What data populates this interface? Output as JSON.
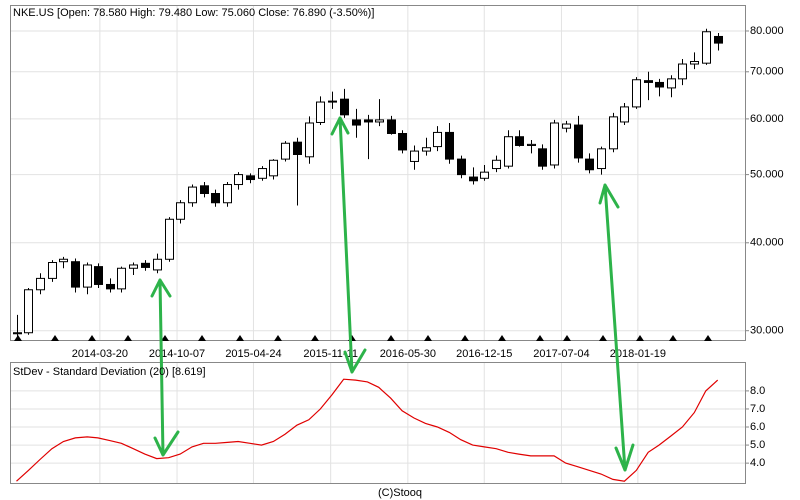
{
  "chart_data": [
    {
      "type": "candlestick",
      "title": "NKE.US [Open: 78.580 High: 79.480 Low: 75.060 Close: 76.890 (-3.50%)]",
      "log_scale": true,
      "grid": true,
      "xlim": [
        "2013-07-29",
        "2018-10-25"
      ],
      "xticks": [
        "2014-03-20",
        "2014-10-07",
        "2015-04-24",
        "2015-11-11",
        "2016-05-30",
        "2016-12-15",
        "2017-07-04",
        "2018-01-19"
      ],
      "ylim": [
        29.1,
        87.1
      ],
      "yticks": [
        {
          "value": 30,
          "label": "30.000"
        },
        {
          "value": 40,
          "label": "40.000"
        },
        {
          "value": 50,
          "label": "50.000"
        },
        {
          "value": 60,
          "label": "60.000"
        },
        {
          "value": 70,
          "label": "70.000"
        },
        {
          "value": 80,
          "label": "80.000"
        }
      ],
      "up_color": "#ffffff",
      "down_color": "#000000",
      "x": [
        "2013-08",
        "2013-09",
        "2013-10",
        "2013-11",
        "2013-12",
        "2014-01",
        "2014-02",
        "2014-03",
        "2014-04",
        "2014-05",
        "2014-06",
        "2014-07",
        "2014-08",
        "2014-09",
        "2014-10",
        "2014-11",
        "2014-12",
        "2015-01",
        "2015-02",
        "2015-03",
        "2015-04",
        "2015-05",
        "2015-06",
        "2015-07",
        "2015-08",
        "2015-09",
        "2015-10",
        "2015-11",
        "2015-12",
        "2016-01",
        "2016-02",
        "2016-03",
        "2016-04",
        "2016-05",
        "2016-06",
        "2016-07",
        "2016-08",
        "2016-09",
        "2016-10",
        "2016-11",
        "2016-12",
        "2017-01",
        "2017-02",
        "2017-03",
        "2017-04",
        "2017-05",
        "2017-06",
        "2017-07",
        "2017-08",
        "2017-09",
        "2017-10",
        "2017-11",
        "2017-12",
        "2018-01",
        "2018-02",
        "2018-03",
        "2018-04",
        "2018-05",
        "2018-06",
        "2018-07",
        "2018-08"
      ],
      "open": [
        29.7,
        29.8,
        34.3,
        35.6,
        37.6,
        37.6,
        34.6,
        37.0,
        34.9,
        34.4,
        36.8,
        37.4,
        36.6,
        37.9,
        43.2,
        45.6,
        48.2,
        47.0,
        45.6,
        48.4,
        49.8,
        49.4,
        49.8,
        52.6,
        55.6,
        53.0,
        59.3,
        63.4,
        64.0,
        59.8,
        59.8,
        59.4,
        59.8,
        57.2,
        52.2,
        54.0,
        54.8,
        57.4,
        52.6,
        49.6,
        49.4,
        51.0,
        51.4,
        56.6,
        55.0,
        54.4,
        51.6,
        58.2,
        58.8,
        52.6,
        51.0,
        54.4,
        59.4,
        62.4,
        68.0,
        67.6,
        66.4,
        68.4,
        71.8,
        72.0,
        78.58
      ],
      "high": [
        31.6,
        34.5,
        36.2,
        37.8,
        38.2,
        38.0,
        37.5,
        37.4,
        35.6,
        37.0,
        37.5,
        37.8,
        38.6,
        43.5,
        46.0,
        48.4,
        48.8,
        47.6,
        48.8,
        50.4,
        50.2,
        51.4,
        52.6,
        55.8,
        56.4,
        60.5,
        64.6,
        65.6,
        66.2,
        62.0,
        60.8,
        64.0,
        60.6,
        57.8,
        55.0,
        56.4,
        58.6,
        59.2,
        53.2,
        51.2,
        51.6,
        53.2,
        57.8,
        57.8,
        56.0,
        55.2,
        59.8,
        59.6,
        60.6,
        53.6,
        54.8,
        61.2,
        63.2,
        68.8,
        70.0,
        68.4,
        69.2,
        73.0,
        74.6,
        80.6,
        79.48
      ],
      "low": [
        29.4,
        29.6,
        33.8,
        35.2,
        36.8,
        34.0,
        33.8,
        34.5,
        34.0,
        34.0,
        36.0,
        36.5,
        36.2,
        37.6,
        42.6,
        45.0,
        46.4,
        45.0,
        45.0,
        47.6,
        48.6,
        49.0,
        49.2,
        52.2,
        45.2,
        51.8,
        58.8,
        62.0,
        60.2,
        56.4,
        52.6,
        58.6,
        57.0,
        53.6,
        50.8,
        53.2,
        54.0,
        51.8,
        49.4,
        48.4,
        49.0,
        50.4,
        51.0,
        54.8,
        53.6,
        50.8,
        51.0,
        57.4,
        52.0,
        50.2,
        50.0,
        53.8,
        58.8,
        62.0,
        63.8,
        64.6,
        64.4,
        67.0,
        70.6,
        71.6,
        75.06
      ],
      "close": [
        29.8,
        34.3,
        35.6,
        37.5,
        37.9,
        34.6,
        37.2,
        34.9,
        34.4,
        36.8,
        37.2,
        36.9,
        37.9,
        43.2,
        45.6,
        48.0,
        47.0,
        45.6,
        48.4,
        50.0,
        49.2,
        51.0,
        52.4,
        55.4,
        53.4,
        59.2,
        63.4,
        63.6,
        60.8,
        58.8,
        59.4,
        59.8,
        57.2,
        54.2,
        54.0,
        54.6,
        57.4,
        52.6,
        50.0,
        49.0,
        50.4,
        52.4,
        56.6,
        55.0,
        55.2,
        51.4,
        59.2,
        59.0,
        52.8,
        50.8,
        54.4,
        60.4,
        62.4,
        68.2,
        67.6,
        66.6,
        68.4,
        71.8,
        72.4,
        79.8,
        76.89
      ]
    },
    {
      "type": "line",
      "title": "StDev - Standard Deviation (20) [8.619]",
      "grid": true,
      "color": "#e00000",
      "ylim": [
        2.9,
        9.6
      ],
      "yticks": [
        {
          "value": 4,
          "label": "4.0"
        },
        {
          "value": 5,
          "label": "5.0"
        },
        {
          "value": 6,
          "label": "6.0"
        },
        {
          "value": 7,
          "label": "7.0"
        },
        {
          "value": 8,
          "label": "8.0"
        }
      ],
      "values": [
        3.0,
        3.6,
        4.2,
        4.8,
        5.2,
        5.4,
        5.45,
        5.4,
        5.25,
        5.1,
        4.8,
        4.5,
        4.25,
        4.3,
        4.5,
        4.9,
        5.1,
        5.1,
        5.15,
        5.2,
        5.1,
        5.0,
        5.2,
        5.6,
        6.1,
        6.4,
        7.0,
        7.8,
        8.65,
        8.6,
        8.5,
        8.2,
        7.6,
        6.9,
        6.5,
        6.2,
        6.0,
        5.7,
        5.3,
        5.0,
        4.9,
        4.8,
        4.6,
        4.5,
        4.4,
        4.4,
        4.4,
        4.0,
        3.8,
        3.6,
        3.4,
        3.1,
        3.0,
        3.6,
        4.6,
        5.0,
        5.5,
        6.0,
        6.8,
        8.0,
        8.6
      ]
    }
  ],
  "credit": "(C)Stooq"
}
